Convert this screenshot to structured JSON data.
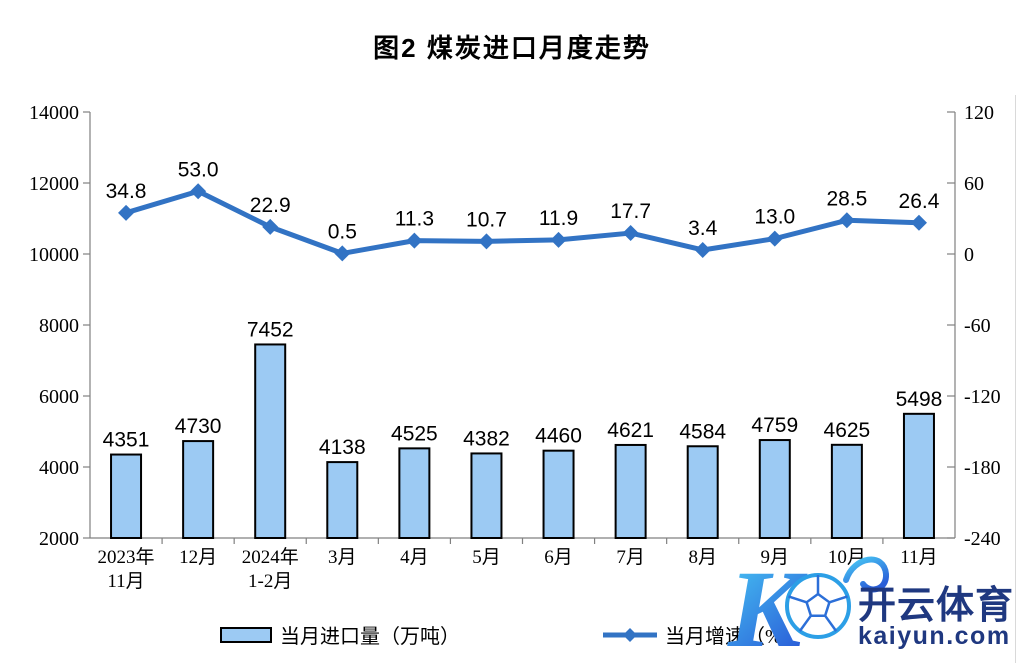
{
  "page": {
    "title": "图2 煤炭进口月度走势"
  },
  "chart_data": {
    "type": "combo-bar-line",
    "title": "图2 煤炭进口月度走势",
    "categories": [
      "2023年11月",
      "12月",
      "2024年1-2月",
      "3月",
      "4月",
      "5月",
      "6月",
      "7月",
      "8月",
      "9月",
      "10月",
      "11月"
    ],
    "category_lines": [
      [
        "2023年",
        "11月"
      ],
      [
        "12月"
      ],
      [
        "2024年",
        "1-2月"
      ],
      [
        "3月"
      ],
      [
        "4月"
      ],
      [
        "5月"
      ],
      [
        "6月"
      ],
      [
        "7月"
      ],
      [
        "8月"
      ],
      [
        "9月"
      ],
      [
        "10月"
      ],
      [
        "11月"
      ]
    ],
    "series": [
      {
        "name": "当月进口量（万吨）",
        "type": "bar",
        "axis": "left",
        "values": [
          4351,
          4730,
          7452,
          4138,
          4525,
          4382,
          4460,
          4621,
          4584,
          4759,
          4625,
          5498
        ],
        "labels": [
          "4351",
          "4730",
          "7452",
          "4138",
          "4525",
          "4382",
          "4460",
          "4621",
          "4584",
          "4759",
          "4625",
          "5498"
        ],
        "fill": "#9CCAF3",
        "stroke": "#000000"
      },
      {
        "name": "当月增速（%）",
        "type": "line",
        "axis": "right",
        "values": [
          34.8,
          53.0,
          22.9,
          0.5,
          11.3,
          10.7,
          11.9,
          17.7,
          3.4,
          13.0,
          28.5,
          26.4
        ],
        "labels": [
          "34.8",
          "53.0",
          "22.9",
          "0.5",
          "11.3",
          "10.7",
          "11.9",
          "17.7",
          "3.4",
          "13.0",
          "28.5",
          "26.4"
        ],
        "color": "#3273C4"
      }
    ],
    "left_axis": {
      "min": 2000,
      "max": 14000,
      "ticks": [
        2000,
        4000,
        6000,
        8000,
        10000,
        12000,
        14000
      ]
    },
    "right_axis": {
      "min": -240,
      "max": 120,
      "ticks": [
        -240,
        -180,
        -120,
        -60,
        0,
        60,
        120
      ]
    },
    "grid": false,
    "legend_position": "bottom"
  },
  "watermark": {
    "logo_letter": "K",
    "brand": "开云体育",
    "domain": "kaiyun.com"
  }
}
